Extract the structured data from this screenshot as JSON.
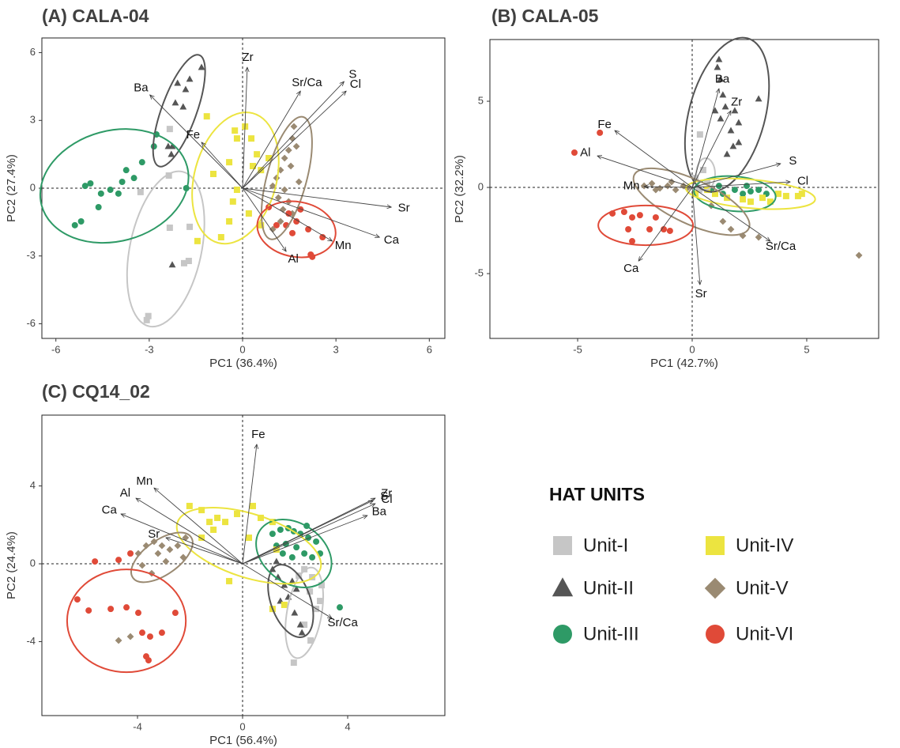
{
  "chart_data": [
    {
      "type": "biplot",
      "title": "(A) CALA-04",
      "xlabel": "PC1 (36.4%)",
      "ylabel": "PC2 (27.4%)",
      "xlim": [
        -6.45,
        6.5
      ],
      "ylim": [
        -6.65,
        6.65
      ],
      "xticks": [
        -6,
        -3,
        0,
        3,
        6
      ],
      "yticks": [
        -6,
        -3,
        0,
        3,
        6
      ],
      "series": [
        {
          "name": "Unit-I",
          "color": "#c6c6c6",
          "marker": "square",
          "ellipse": {
            "cx": -2.47,
            "cy": -2.69,
            "rx": 1.15,
            "ry": 3.5,
            "angle": 12
          },
          "x": [
            -2.34,
            -2.37,
            -3.28,
            -2.34,
            -1.7,
            -1.88,
            -1.73,
            -3.08,
            -3.03
          ],
          "y": [
            2.62,
            0.56,
            -0.17,
            -1.75,
            -1.71,
            -3.32,
            -3.22,
            -5.84,
            -5.66
          ]
        },
        {
          "name": "Unit-II",
          "color": "#555555",
          "marker": "triangle",
          "ellipse": {
            "cx": -2.04,
            "cy": 3.43,
            "rx": 0.56,
            "ry": 2.62,
            "angle": 20
          },
          "x": [
            -1.32,
            -2.09,
            -1.83,
            -1.7,
            -2.16,
            -1.91,
            -2.26,
            -2.39,
            -2.29,
            -2.26
          ],
          "y": [
            5.35,
            4.65,
            4.37,
            4.83,
            3.78,
            3.6,
            1.85,
            1.85,
            1.5,
            -3.39
          ]
        },
        {
          "name": "Unit-III",
          "color": "#2e9a66",
          "marker": "circle",
          "ellipse": {
            "cx": -4.12,
            "cy": 0.1,
            "rx": 2.42,
            "ry": 2.45,
            "angle": -15
          },
          "x": [
            -5.06,
            -5.19,
            -5.39,
            -4.63,
            -3.99,
            -4.25,
            -3.87,
            -3.74,
            -3.23,
            -2.85,
            -2.77,
            -1.81,
            -3.49,
            -4.89,
            -4.55
          ],
          "y": [
            0.1,
            -1.47,
            -1.64,
            -0.84,
            -0.24,
            -0.07,
            0.28,
            0.8,
            1.15,
            1.85,
            2.38,
            0.0,
            0.45,
            0.21,
            -0.24
          ]
        },
        {
          "name": "Unit-IV",
          "color": "#ece440",
          "marker": "square",
          "ellipse": {
            "cx": -0.23,
            "cy": 0.45,
            "rx": 1.32,
            "ry": 2.97,
            "angle": 15
          },
          "x": [
            -1.15,
            -0.25,
            0.08,
            0.28,
            0.46,
            0.33,
            0.59,
            -0.18,
            -0.31,
            -0.69,
            -1.45,
            -0.43,
            0.2,
            0.59,
            0.84,
            -0.43,
            -0.94,
            -0.18
          ],
          "y": [
            3.18,
            2.55,
            2.73,
            2.2,
            1.5,
            0.98,
            0.8,
            -0.07,
            -0.59,
            -2.17,
            -2.34,
            -1.47,
            -1.12,
            -1.64,
            1.33,
            1.15,
            0.63,
            2.2
          ]
        },
        {
          "name": "Unit-V",
          "color": "#9a8a72",
          "marker": "diamond",
          "ellipse": {
            "cx": 1.42,
            "cy": 0.45,
            "rx": 0.64,
            "ry": 2.8,
            "angle": 15
          },
          "x": [
            1.65,
            1.6,
            1.48,
            1.35,
            1.22,
            1.09,
            0.97,
            1.35,
            1.15,
            1.48,
            1.3,
            1.6,
            1.22,
            0.97,
            1.73,
            1.55,
            1.81
          ],
          "y": [
            2.73,
            2.2,
            1.68,
            1.33,
            0.8,
            0.45,
            0.1,
            -0.07,
            -0.42,
            -0.59,
            -0.94,
            -1.12,
            -1.47,
            -1.82,
            1.85,
            0.98,
            0.28
          ]
        },
        {
          "name": "Unit-VI",
          "color": "#e04a38",
          "marker": "circle",
          "ellipse": {
            "cx": 1.73,
            "cy": -1.82,
            "rx": 1.27,
            "ry": 1.22,
            "angle": 10
          },
          "x": [
            0.84,
            1.4,
            1.73,
            1.48,
            1.86,
            1.6,
            2.11,
            2.19,
            2.24,
            2.57,
            1.09
          ],
          "y": [
            -0.84,
            -1.64,
            -1.47,
            -1.12,
            -0.94,
            -1.99,
            -1.82,
            -2.94,
            -3.04,
            -2.17,
            -1.64
          ]
        }
      ],
      "arrows": [
        {
          "label": "Zr",
          "x": 0.15,
          "y": 5.35
        },
        {
          "label": "Ba",
          "x": -2.98,
          "y": 4.13
        },
        {
          "label": "Sr/Ca",
          "x": 1.86,
          "y": 4.3
        },
        {
          "label": "S",
          "x": 3.26,
          "y": 4.72
        },
        {
          "label": "Cl",
          "x": 3.33,
          "y": 4.3
        },
        {
          "label": "Fe",
          "x": -1.32,
          "y": 2.03
        },
        {
          "label": "Sr",
          "x": 4.78,
          "y": -0.84
        },
        {
          "label": "Ca",
          "x": 4.4,
          "y": -2.17
        },
        {
          "label": "Mn",
          "x": 2.88,
          "y": -2.34
        },
        {
          "label": "Al",
          "x": 1.4,
          "y": -2.8
        }
      ]
    },
    {
      "type": "biplot",
      "title": "(B) CALA-05",
      "xlabel": "PC1 (42.7%)",
      "ylabel": "PC2 (32.2%)",
      "xlim": [
        -8.83,
        8.14
      ],
      "ylim": [
        -8.76,
        8.58
      ],
      "xticks": [
        -5,
        0,
        5
      ],
      "yticks": [
        -5,
        0,
        5
      ],
      "series": [
        {
          "name": "Unit-I",
          "color": "#c6c6c6",
          "marker": "square",
          "ellipse": {
            "cx": 0.59,
            "cy": 0.78,
            "rx": 0.41,
            "ry": 0.92,
            "angle": 0
          },
          "x": [
            0.34,
            0.48,
            0.14,
            0.31,
            0.66
          ],
          "y": [
            3.07,
            1.01,
            0.55,
            -0.14,
            0.32
          ]
        },
        {
          "name": "Unit-II",
          "color": "#555555",
          "marker": "triangle",
          "ellipse": {
            "cx": 1.52,
            "cy": 4.22,
            "rx": 1.66,
            "ry": 4.59,
            "angle": 15
          },
          "x": [
            1.17,
            1.1,
            1.24,
            1.34,
            1.45,
            1.86,
            2.03,
            1.24,
            1.69,
            2.03,
            1.79,
            1.52,
            2.9,
            1.0
          ],
          "y": [
            7.43,
            6.97,
            6.28,
            5.37,
            4.68,
            4.45,
            3.76,
            3.99,
            3.3,
            2.61,
            2.39,
            1.93,
            5.14,
            4.45
          ]
        },
        {
          "name": "Unit-III",
          "color": "#2e9a66",
          "marker": "circle",
          "ellipse": {
            "cx": 1.86,
            "cy": -0.37,
            "rx": 1.79,
            "ry": 1.01,
            "angle": 5
          },
          "x": [
            0.83,
            1.34,
            1.86,
            2.21,
            2.55,
            2.9,
            3.24,
            1.17,
            2.38
          ],
          "y": [
            -0.14,
            -0.37,
            -0.14,
            -0.37,
            -0.23,
            -0.14,
            -0.37,
            0.09,
            0.09
          ]
        },
        {
          "name": "Unit-IV",
          "color": "#ece440",
          "marker": "square",
          "ellipse": {
            "cx": 2.55,
            "cy": -0.37,
            "rx": 2.83,
            "ry": 0.83,
            "angle": 5
          },
          "x": [
            0.14,
            0.66,
            1.0,
            1.52,
            2.21,
            2.55,
            3.07,
            3.41,
            3.76,
            4.1,
            4.62,
            4.79
          ],
          "y": [
            -0.37,
            -0.14,
            -0.37,
            -0.6,
            -0.69,
            -0.83,
            -0.6,
            -0.83,
            -0.37,
            -0.5,
            -0.5,
            -0.37
          ]
        },
        {
          "name": "Unit-V",
          "color": "#9a8a72",
          "marker": "diamond",
          "ellipse": {
            "cx": -0.03,
            "cy": -0.83,
            "rx": 2.76,
            "ry": 1.28,
            "angle": 25
          },
          "x": [
            -2.1,
            -1.76,
            -1.41,
            -1.07,
            -0.72,
            -0.38,
            -1.59,
            -0.9,
            -0.21,
            0.83,
            1.34,
            1.69,
            2.21,
            2.9,
            7.28
          ],
          "y": [
            0.09,
            0.23,
            -0.05,
            0.09,
            -0.14,
            0.09,
            -0.14,
            0.32,
            -0.05,
            -1.06,
            -1.97,
            -2.43,
            -2.8,
            -2.89,
            -3.94
          ]
        },
        {
          "name": "Unit-VI",
          "color": "#e04a38",
          "marker": "circle",
          "ellipse": {
            "cx": -2.03,
            "cy": -2.2,
            "rx": 2.07,
            "ry": 1.15,
            "angle": 0
          },
          "x": [
            -4.03,
            -5.14,
            -3.48,
            -2.97,
            -2.62,
            -2.28,
            -2.79,
            -1.86,
            -1.24,
            -0.97,
            -1.59,
            -2.62
          ],
          "y": [
            3.17,
            2.02,
            -1.51,
            -1.42,
            -1.74,
            -1.61,
            -2.43,
            -2.43,
            -2.43,
            -2.52,
            -1.74,
            -3.12
          ]
        }
      ],
      "arrows": [
        {
          "label": "Ba",
          "x": 1.17,
          "y": 5.73
        },
        {
          "label": "Zr",
          "x": 1.69,
          "y": 4.45
        },
        {
          "label": "Fe",
          "x": -3.38,
          "y": 3.3
        },
        {
          "label": "Al",
          "x": -4.14,
          "y": 1.83
        },
        {
          "label": "S",
          "x": 3.86,
          "y": 1.38
        },
        {
          "label": "Cl",
          "x": 4.28,
          "y": 0.32
        },
        {
          "label": "Mn",
          "x": -2.1,
          "y": 0.05
        },
        {
          "label": "Ca",
          "x": -2.34,
          "y": -4.27
        },
        {
          "label": "Sr",
          "x": 0.34,
          "y": -5.64
        },
        {
          "label": "Sr/Ca",
          "x": 3.41,
          "y": -3.12
        }
      ]
    },
    {
      "type": "biplot",
      "title": "(C) CQ14_02",
      "xlabel": "PC1 (56.4%)",
      "ylabel": "PC2 (24.4%)",
      "xlim": [
        -7.64,
        7.7
      ],
      "ylim": [
        -7.8,
        7.64
      ],
      "xticks": [
        -4,
        0,
        4
      ],
      "yticks": [
        -4,
        0,
        4
      ],
      "series": [
        {
          "name": "Unit-I",
          "color": "#c6c6c6",
          "marker": "square",
          "ellipse": {
            "cx": 2.35,
            "cy": -2.52,
            "rx": 0.66,
            "ry": 2.36,
            "angle": 10
          },
          "x": [
            2.35,
            2.65,
            2.56,
            2.95,
            2.8,
            2.35,
            2.59,
            1.95,
            3.01,
            2.14
          ],
          "y": [
            -0.28,
            -0.69,
            -1.42,
            -1.91,
            -2.32,
            -3.13,
            -3.94,
            -5.08,
            -1.1,
            -0.61
          ]
        },
        {
          "name": "Unit-II",
          "color": "#555555",
          "marker": "triangle",
          "ellipse": {
            "cx": 1.83,
            "cy": -1.91,
            "rx": 0.75,
            "ry": 1.95,
            "angle": -20
          },
          "x": [
            1.14,
            1.35,
            1.59,
            2.05,
            1.74,
            1.44,
            1.98,
            2.2,
            2.26,
            1.29,
            1.89
          ],
          "y": [
            -0.28,
            -0.69,
            -1.1,
            -1.3,
            -1.71,
            -1.91,
            -2.52,
            -3.13,
            -3.54,
            0.12,
            -0.89
          ]
        },
        {
          "name": "Unit-III",
          "color": "#2e9a66",
          "marker": "circle",
          "ellipse": {
            "cx": 1.95,
            "cy": 0.53,
            "rx": 1.56,
            "ry": 1.54,
            "angle": 35
          },
          "x": [
            1.14,
            1.44,
            1.74,
            1.95,
            2.2,
            2.5,
            2.8,
            1.29,
            1.65,
            2.05,
            2.35,
            2.65,
            2.95,
            1.53,
            1.89,
            3.7,
            2.44
          ],
          "y": [
            1.54,
            1.75,
            1.83,
            1.67,
            1.54,
            1.34,
            1.14,
            0.93,
            1.02,
            0.85,
            0.53,
            0.33,
            0.53,
            0.53,
            0.33,
            -2.24,
            1.95
          ]
        },
        {
          "name": "Unit-IV",
          "color": "#ece440",
          "marker": "square",
          "ellipse": {
            "cx": 0.24,
            "cy": 0.93,
            "rx": 2.86,
            "ry": 1.63,
            "angle": 18
          },
          "x": [
            -2.02,
            -1.56,
            -1.26,
            -0.96,
            -0.66,
            -0.21,
            0.39,
            0.69,
            1.14,
            -1.11,
            -1.56,
            -0.51,
            1.14,
            1.59,
            1.29,
            0.24
          ],
          "y": [
            2.97,
            2.76,
            2.15,
            2.36,
            2.15,
            2.56,
            2.97,
            2.36,
            2.15,
            1.75,
            1.34,
            -0.89,
            -2.32,
            -2.11,
            0.73,
            1.34
          ]
        },
        {
          "name": "Unit-V",
          "color": "#9a8a72",
          "marker": "diamond",
          "ellipse": {
            "cx": -3.07,
            "cy": 0.33,
            "rx": 1.35,
            "ry": 0.89,
            "angle": -35
          },
          "x": [
            -3.97,
            -3.67,
            -3.37,
            -3.07,
            -3.22,
            -2.77,
            -2.47,
            -2.26,
            -2.92,
            -3.82,
            -3.46,
            -2.17,
            -4.72,
            -4.27
          ],
          "y": [
            0.53,
            0.93,
            1.14,
            0.93,
            0.53,
            0.73,
            0.93,
            0.33,
            0.12,
            -0.08,
            -0.49,
            1.34,
            -3.94,
            -3.74
          ]
        },
        {
          "name": "Unit-VI",
          "color": "#e04a38",
          "marker": "circle",
          "ellipse": {
            "cx": -4.42,
            "cy": -2.93,
            "rx": 2.26,
            "ry": 2.64,
            "angle": 0
          },
          "x": [
            -6.29,
            -5.86,
            -5.62,
            -4.72,
            -4.27,
            -5.02,
            -4.42,
            -3.97,
            -3.82,
            -3.52,
            -3.07,
            -3.67,
            -3.58,
            -2.56
          ],
          "y": [
            -1.83,
            -2.4,
            0.12,
            0.2,
            0.53,
            -2.32,
            -2.24,
            -2.52,
            -3.54,
            -3.74,
            -3.54,
            -4.76,
            -4.96,
            -2.52
          ]
        }
      ],
      "arrows": [
        {
          "label": "Fe",
          "x": 0.54,
          "y": 6.14
        },
        {
          "label": "Mn",
          "x": -3.37,
          "y": 3.9
        },
        {
          "label": "Al",
          "x": -4.06,
          "y": 3.37
        },
        {
          "label": "Ca",
          "x": -4.63,
          "y": 2.56
        },
        {
          "label": "Sr",
          "x": -2.92,
          "y": 1.34
        },
        {
          "label": "Zr",
          "x": 5.05,
          "y": 3.37
        },
        {
          "label": "S",
          "x": 4.96,
          "y": 3.25
        },
        {
          "label": "Cl",
          "x": 5.05,
          "y": 3.09
        },
        {
          "label": "Ba",
          "x": 4.75,
          "y": 2.48
        },
        {
          "label": "Sr/Ca",
          "x": 3.4,
          "y": -2.8
        }
      ]
    }
  ],
  "legend": {
    "title": "HAT UNITS"
  }
}
